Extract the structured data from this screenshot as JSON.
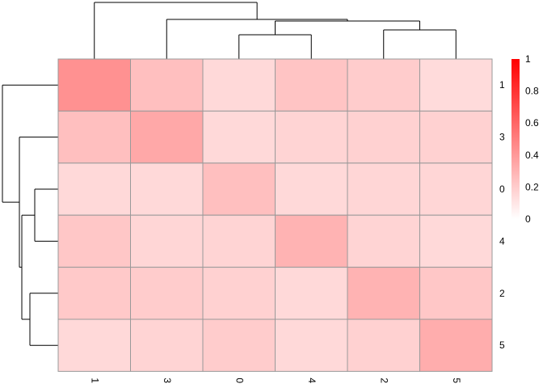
{
  "chart_data": {
    "type": "heatmap",
    "title": "",
    "row_labels": [
      "1",
      "3",
      "0",
      "4",
      "2",
      "5"
    ],
    "col_labels": [
      "1",
      "3",
      "0",
      "4",
      "2",
      "5"
    ],
    "values": [
      [
        0.43,
        0.25,
        0.15,
        0.23,
        0.2,
        0.14
      ],
      [
        0.25,
        0.34,
        0.15,
        0.17,
        0.18,
        0.18
      ],
      [
        0.15,
        0.15,
        0.25,
        0.15,
        0.16,
        0.16
      ],
      [
        0.22,
        0.16,
        0.17,
        0.3,
        0.17,
        0.15
      ],
      [
        0.21,
        0.2,
        0.18,
        0.15,
        0.3,
        0.22
      ],
      [
        0.15,
        0.17,
        0.2,
        0.15,
        0.18,
        0.32
      ]
    ],
    "color_scale": {
      "low": "#ffffff",
      "high": "#ff0000",
      "range": [
        0,
        1
      ],
      "ticks": [
        "0",
        "0.2",
        "0.4",
        "0.6",
        "0.8",
        "1"
      ]
    },
    "cell_border_color": "#999999",
    "dendrogram_color": "#000000"
  }
}
